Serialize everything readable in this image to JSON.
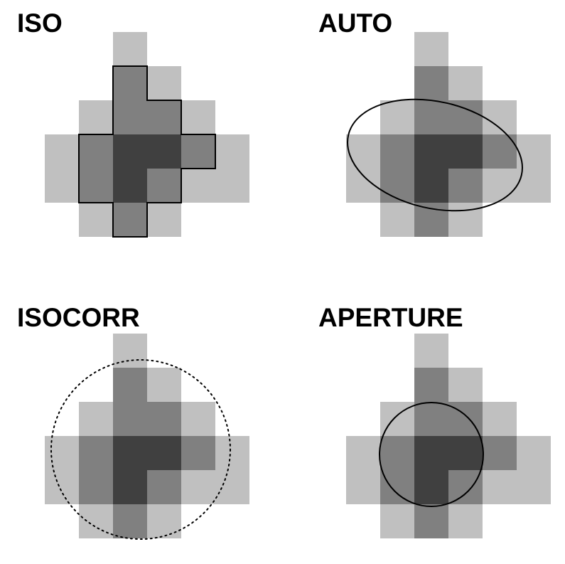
{
  "panels": [
    {
      "id": "iso",
      "title": "ISO",
      "overlay": "isophotal-contour"
    },
    {
      "id": "auto",
      "title": "AUTO",
      "overlay": "ellipse-solid"
    },
    {
      "id": "isocorr",
      "title": "ISOCORR",
      "overlay": "circle-dotted"
    },
    {
      "id": "aperture",
      "title": "APERTURE",
      "overlay": "circle-solid"
    }
  ],
  "pixel_grid": {
    "rows": [
      [
        0,
        0,
        1,
        0,
        0,
        0
      ],
      [
        0,
        0,
        2,
        1,
        0,
        0
      ],
      [
        0,
        1,
        2,
        2,
        1,
        0
      ],
      [
        1,
        2,
        3,
        3,
        2,
        1
      ],
      [
        1,
        2,
        3,
        2,
        1,
        1
      ],
      [
        0,
        1,
        2,
        1,
        0,
        0
      ]
    ],
    "shade_colors": [
      "#ffffff",
      "#c0c0c0",
      "#808080",
      "#404040"
    ]
  },
  "colors": {
    "stroke": "#000000",
    "background": "#ffffff"
  }
}
